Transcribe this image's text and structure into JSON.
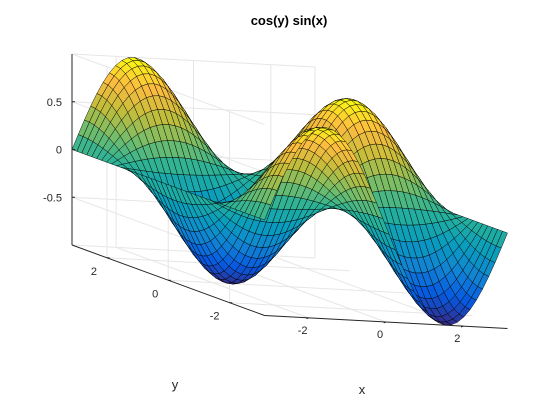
{
  "chart_data": {
    "type": "surface",
    "title": "cos(y)  sin(x)",
    "xlabel": "x",
    "ylabel": "y",
    "zlabel": "",
    "function": "cos(y)*sin(x)",
    "xlim": [
      -3.14159,
      3.14159
    ],
    "ylim": [
      -3.14159,
      3.14159
    ],
    "zlim": [
      -1,
      1
    ],
    "xticks": [
      -2,
      0,
      2
    ],
    "yticks": [
      -2,
      0,
      2
    ],
    "zticks": [
      -0.5,
      0,
      0.5
    ],
    "xtick_labels": [
      "-2",
      "0",
      "2"
    ],
    "ytick_labels": [
      "-2",
      "0",
      "2"
    ],
    "ztick_labels": [
      "-0.5",
      "0",
      "0.5"
    ],
    "grid": true,
    "edge_color": "#000000",
    "colormap": "parula",
    "mesh_points": 40
  }
}
